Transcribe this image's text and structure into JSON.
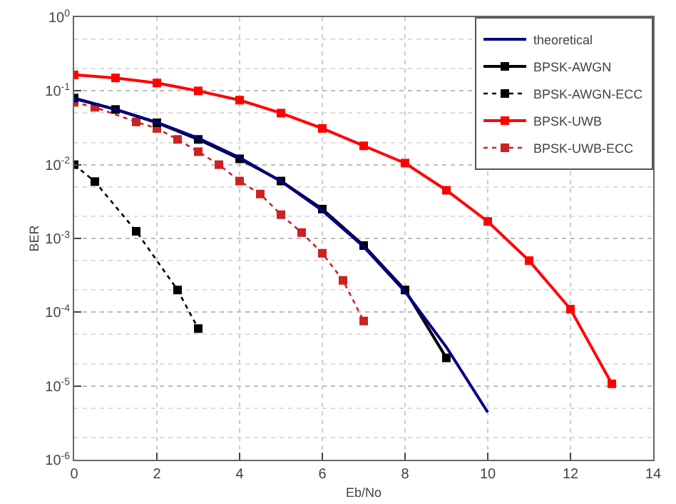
{
  "chart_data": {
    "type": "line",
    "xlabel": "Eb/No",
    "ylabel": "BER",
    "log": "y",
    "grid": true,
    "legend": "top right",
    "xlim": [
      0,
      14
    ],
    "xticks": [
      0,
      2,
      4,
      6,
      8,
      10,
      12,
      14
    ],
    "ylim": [
      1e-06,
      1
    ],
    "yticks": [
      {
        "value": 1e-06,
        "label": "10$^{-6}$"
      },
      {
        "value": 1e-05,
        "label": "10$^{-5}$"
      },
      {
        "value": 0.0001,
        "label": "10$^{-4}$"
      },
      {
        "value": 0.001,
        "label": "10$^{-3}$"
      },
      {
        "value": 0.01,
        "label": "10$^{-2}$"
      },
      {
        "value": 0.1,
        "label": "10$^{-1}$"
      },
      {
        "value": 1,
        "label": "10$^{0}$"
      }
    ],
    "series": [
      {
        "name": "theoretical",
        "color": "#000080",
        "marker": "none",
        "line_style": "solid",
        "x": [
          0,
          1,
          2,
          3,
          4,
          5,
          6,
          7,
          8,
          9,
          10
        ],
        "values": [
          0.0786,
          0.0563,
          0.0375,
          0.0229,
          0.0125,
          0.00595,
          0.00239,
          0.000773,
          0.000191,
          3.36e-05,
          4.4e-06
        ]
      },
      {
        "name": "BPSK-AWGN",
        "color": "#000000",
        "marker": "square",
        "line_style": "solid",
        "x": [
          0,
          1,
          2,
          3,
          4,
          5,
          6,
          7,
          8,
          9
        ],
        "values": [
          0.08,
          0.056,
          0.037,
          0.022,
          0.012,
          0.006,
          0.0025,
          0.0008,
          0.0002,
          2.4e-05
        ]
      },
      {
        "name": "BPSK-AWGN-ECC",
        "color": "#000000",
        "marker": "square",
        "line_style": "dotted",
        "x": [
          0,
          0.5,
          1.5,
          2.5,
          3
        ],
        "values": [
          0.01,
          0.0059,
          0.00125,
          0.0002,
          6e-05
        ]
      },
      {
        "name": "BPSK-UWB",
        "color": "#ff0000",
        "marker": "square",
        "line_style": "solid",
        "x": [
          0,
          1,
          2,
          3,
          4,
          5,
          6,
          7,
          8,
          9,
          10,
          11,
          12,
          13
        ],
        "values": [
          0.165,
          0.15,
          0.128,
          0.1,
          0.075,
          0.05,
          0.031,
          0.018,
          0.0105,
          0.0045,
          0.0017,
          0.0005,
          0.00011,
          1.07e-05
        ]
      },
      {
        "name": "BPSK-UWB-ECC",
        "color": "#cc2222",
        "marker": "square",
        "line_style": "dotted",
        "x": [
          0,
          0.5,
          1.5,
          2,
          2.5,
          3,
          3.5,
          4,
          4.5,
          5,
          5.5,
          6,
          6.5,
          7
        ],
        "values": [
          0.07,
          0.06,
          0.038,
          0.031,
          0.022,
          0.015,
          0.01,
          0.006,
          0.004,
          0.0021,
          0.0012,
          0.00063,
          0.00027,
          7.6e-05
        ]
      }
    ]
  }
}
